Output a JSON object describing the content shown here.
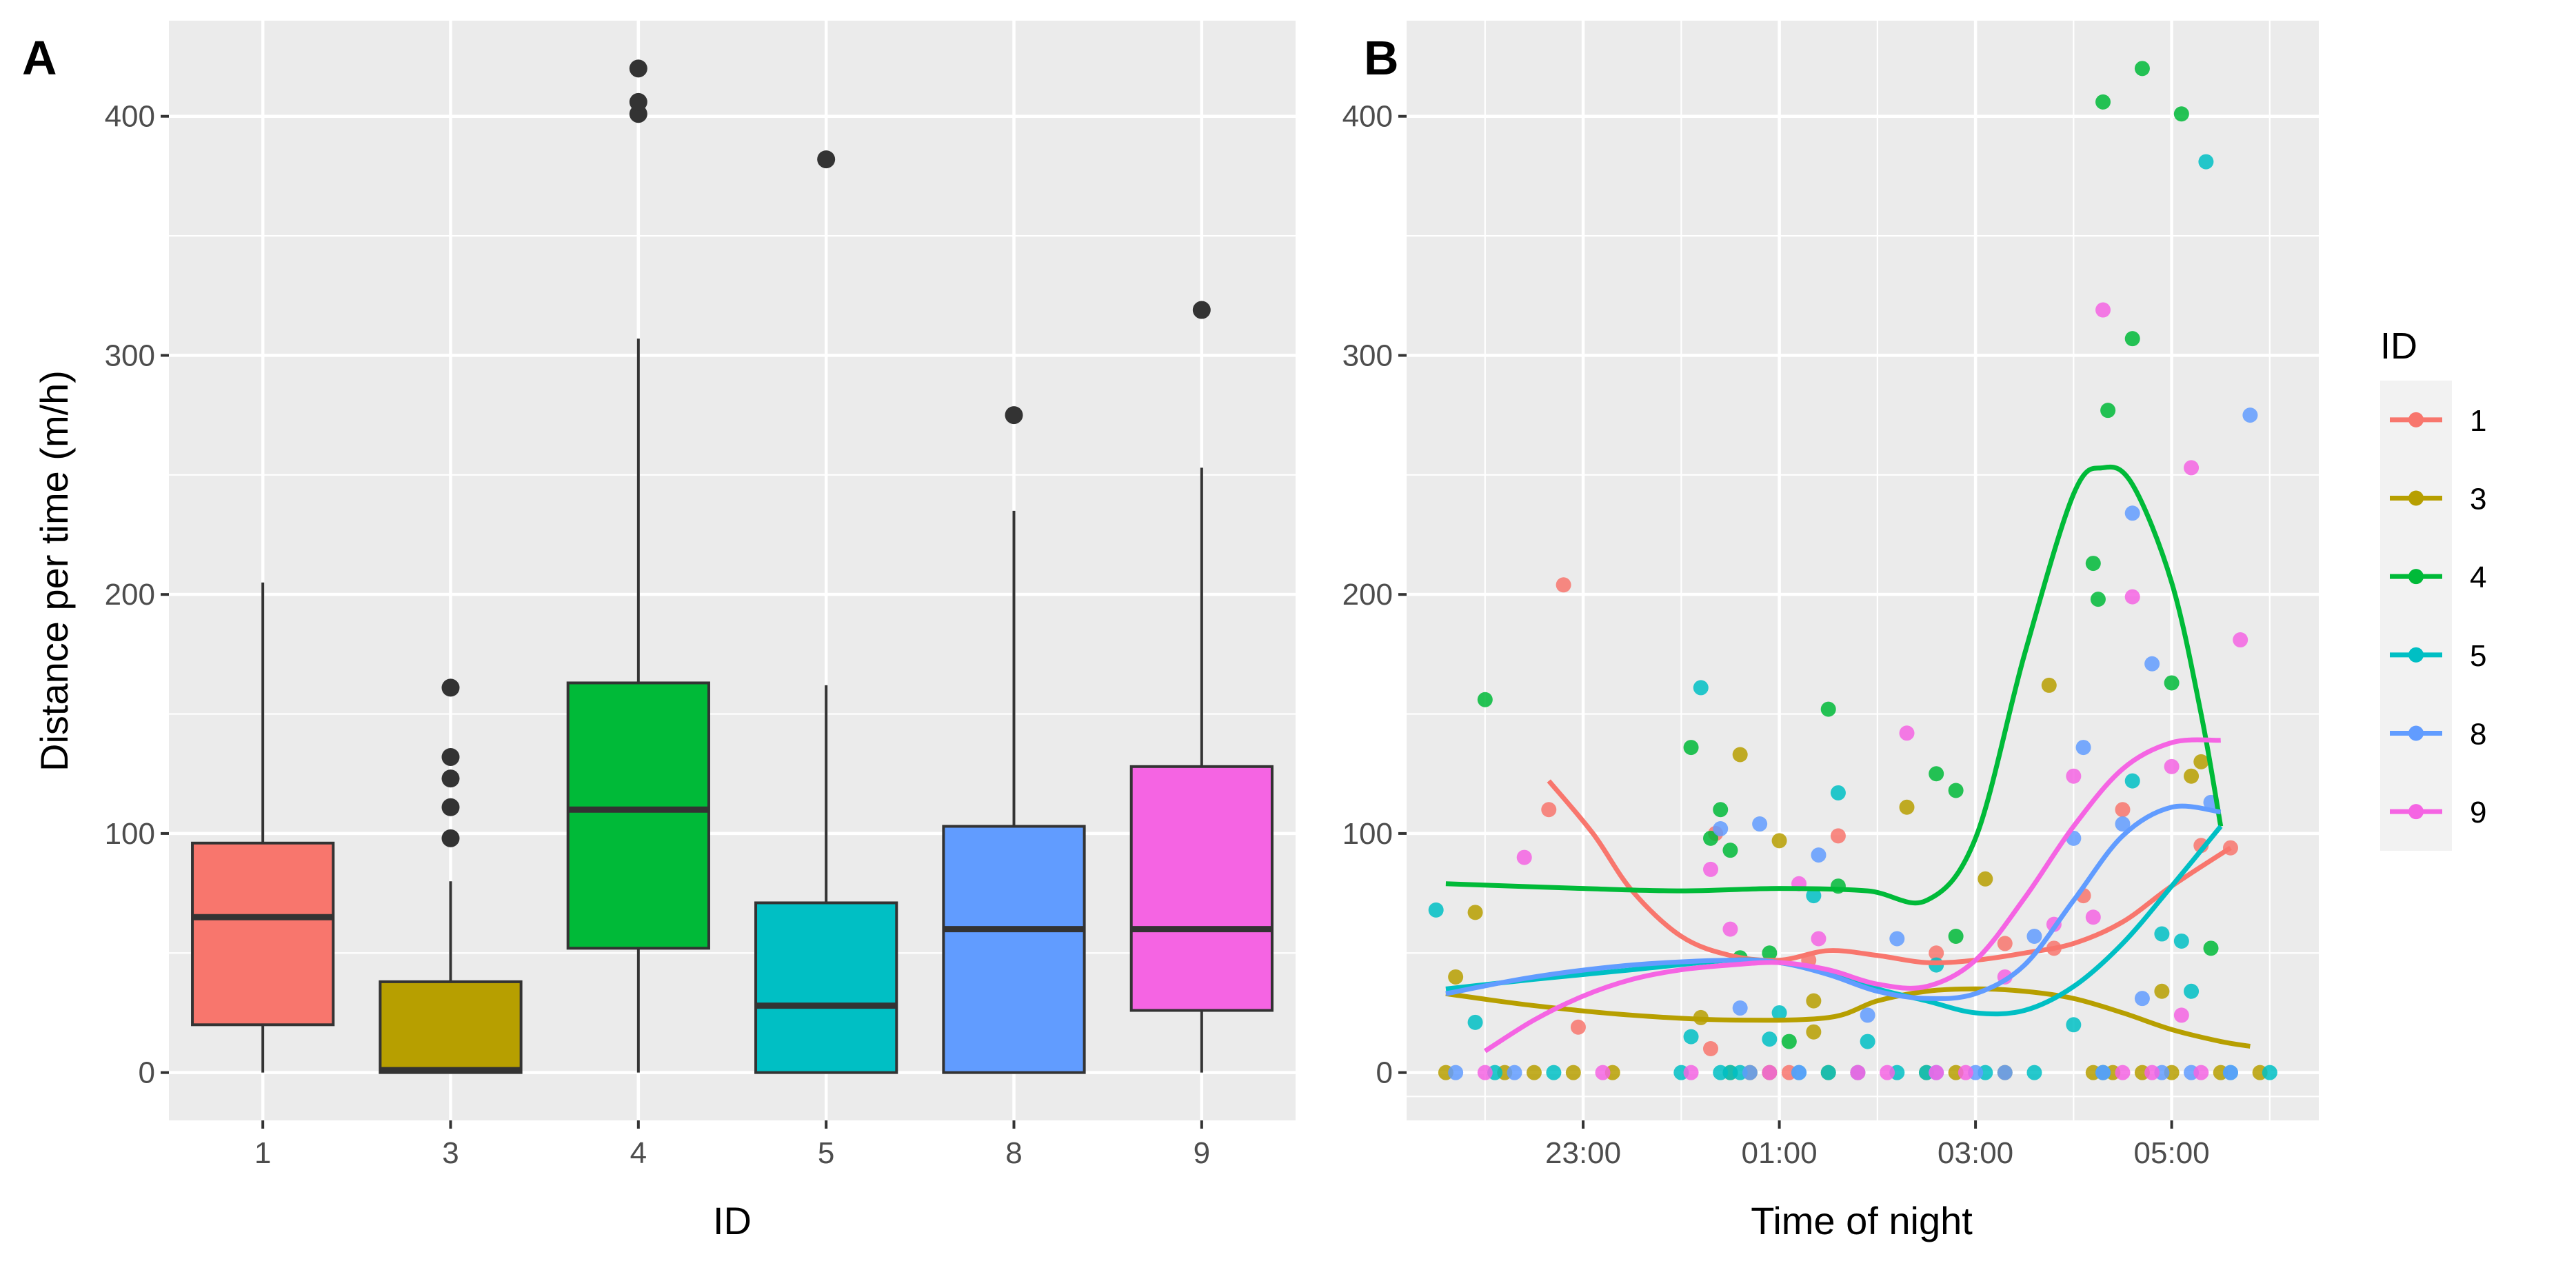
{
  "colors": {
    "1": "#F8766D",
    "3": "#B79F00",
    "4": "#00BA38",
    "5": "#00BFC4",
    "8": "#619CFF",
    "9": "#F564E3"
  },
  "chart_data": [
    {
      "panel": "A",
      "type": "boxplot",
      "xlabel": "ID",
      "ylabel": "Distance per time (m/h)",
      "categories": [
        "1",
        "3",
        "4",
        "5",
        "8",
        "9"
      ],
      "ylim": [
        -20,
        440
      ],
      "yticks": [
        0,
        100,
        200,
        300,
        400
      ],
      "yticklabels": [
        "0",
        "100",
        "200",
        "300",
        "400"
      ],
      "boxes": [
        {
          "id": "1",
          "min": 0,
          "q1": 20,
          "median": 65,
          "q3": 96,
          "max": 205,
          "outliers": []
        },
        {
          "id": "3",
          "min": 0,
          "q1": 0,
          "median": 1,
          "q3": 38,
          "max": 80,
          "outliers": [
            98,
            111,
            123,
            132,
            161
          ]
        },
        {
          "id": "4",
          "min": 0,
          "q1": 52,
          "median": 110,
          "q3": 163,
          "max": 307,
          "outliers": [
            401,
            406,
            420
          ]
        },
        {
          "id": "5",
          "min": 0,
          "q1": 0,
          "median": 28,
          "q3": 71,
          "max": 162,
          "outliers": [
            382
          ]
        },
        {
          "id": "8",
          "min": 0,
          "q1": 0,
          "median": 60,
          "q3": 103,
          "max": 235,
          "outliers": [
            275
          ]
        },
        {
          "id": "9",
          "min": 0,
          "q1": 26,
          "median": 60,
          "q3": 128,
          "max": 253,
          "outliers": [
            319
          ]
        }
      ]
    },
    {
      "panel": "B",
      "type": "scatter",
      "xlabel": "Time of night",
      "ylabel": "",
      "x_unit": "hours after midnight",
      "xlim": [
        -2.8,
        6.5
      ],
      "ylim": [
        -20,
        440
      ],
      "xticks": [
        -1,
        1,
        3,
        5
      ],
      "xticklabels": [
        "23:00",
        "01:00",
        "03:00",
        "05:00"
      ],
      "yticks": [
        0,
        100,
        200,
        300,
        400
      ],
      "yticklabels": [
        "0",
        "100",
        "200",
        "300",
        "400"
      ],
      "legend": {
        "title": "ID",
        "position": "right",
        "entries": [
          "1",
          "3",
          "4",
          "5",
          "8",
          "9"
        ]
      },
      "series": [
        {
          "name": "1",
          "points": [
            [
              -1.35,
              110
            ],
            [
              -1.2,
              204
            ],
            [
              -1.05,
              19
            ],
            [
              0.3,
              10
            ],
            [
              0.35,
              100
            ],
            [
              1.1,
              0
            ],
            [
              1.3,
              47
            ],
            [
              1.6,
              99
            ],
            [
              2.6,
              50
            ],
            [
              3.3,
              54
            ],
            [
              3.8,
              52
            ],
            [
              4.1,
              74
            ],
            [
              4.5,
              110
            ],
            [
              5.3,
              95
            ],
            [
              5.6,
              94
            ]
          ],
          "trend": [
            [
              -1.35,
              122
            ],
            [
              -0.9,
              100
            ],
            [
              -0.5,
              76
            ],
            [
              0,
              57
            ],
            [
              0.5,
              49
            ],
            [
              1,
              47
            ],
            [
              1.5,
              51
            ],
            [
              2,
              49
            ],
            [
              2.5,
              46
            ],
            [
              3,
              47
            ],
            [
              3.5,
              50
            ],
            [
              4,
              54
            ],
            [
              4.5,
              63
            ],
            [
              5,
              78
            ],
            [
              5.6,
              94
            ]
          ]
        },
        {
          "name": "3",
          "points": [
            [
              -2.4,
              0
            ],
            [
              -2.3,
              40
            ],
            [
              -2.1,
              67
            ],
            [
              -1.8,
              0
            ],
            [
              -1.5,
              0
            ],
            [
              -1.1,
              0
            ],
            [
              -0.7,
              0
            ],
            [
              0.2,
              23
            ],
            [
              0.5,
              0
            ],
            [
              0.6,
              133
            ],
            [
              0.7,
              0
            ],
            [
              0.9,
              0
            ],
            [
              1.0,
              97
            ],
            [
              1.35,
              30
            ],
            [
              1.35,
              17
            ],
            [
              1.5,
              0
            ],
            [
              1.8,
              0
            ],
            [
              2.3,
              111
            ],
            [
              2.5,
              0
            ],
            [
              2.8,
              0
            ],
            [
              3.1,
              81
            ],
            [
              3.3,
              0
            ],
            [
              3.75,
              162
            ],
            [
              4.2,
              0
            ],
            [
              4.3,
              0
            ],
            [
              4.4,
              0
            ],
            [
              4.7,
              0
            ],
            [
              4.9,
              34
            ],
            [
              5.0,
              0
            ],
            [
              5.2,
              124
            ],
            [
              5.3,
              130
            ],
            [
              5.5,
              0
            ],
            [
              5.9,
              0
            ]
          ],
          "trend": [
            [
              -2.4,
              33
            ],
            [
              -1.5,
              28
            ],
            [
              -0.5,
              24
            ],
            [
              0.5,
              22
            ],
            [
              1.5,
              23
            ],
            [
              2,
              30
            ],
            [
              2.5,
              34
            ],
            [
              3,
              35
            ],
            [
              3.5,
              34
            ],
            [
              4,
              31
            ],
            [
              4.5,
              25
            ],
            [
              5,
              18
            ],
            [
              5.5,
              13
            ],
            [
              5.8,
              11
            ]
          ]
        },
        {
          "name": "4",
          "points": [
            [
              -2.0,
              156
            ],
            [
              0.1,
              136
            ],
            [
              0.3,
              98
            ],
            [
              0.4,
              110
            ],
            [
              0.5,
              93
            ],
            [
              0.6,
              48
            ],
            [
              0.9,
              50
            ],
            [
              1.1,
              13
            ],
            [
              1.5,
              152
            ],
            [
              1.6,
              78
            ],
            [
              2.6,
              125
            ],
            [
              2.8,
              57
            ],
            [
              2.8,
              118
            ],
            [
              4.2,
              213
            ],
            [
              4.25,
              198
            ],
            [
              4.3,
              406
            ],
            [
              4.35,
              277
            ],
            [
              4.6,
              307
            ],
            [
              4.7,
              420
            ],
            [
              5.0,
              163
            ],
            [
              5.1,
              401
            ],
            [
              5.4,
              52
            ]
          ],
          "trend": [
            [
              -2.4,
              79
            ],
            [
              -1,
              77
            ],
            [
              0,
              76
            ],
            [
              1,
              77
            ],
            [
              1.9,
              76
            ],
            [
              2.5,
              72
            ],
            [
              3,
              98
            ],
            [
              3.5,
              175
            ],
            [
              4.0,
              242
            ],
            [
              4.3,
              253
            ],
            [
              4.6,
              246
            ],
            [
              5.0,
              205
            ],
            [
              5.3,
              150
            ],
            [
              5.5,
              103
            ]
          ]
        },
        {
          "name": "5",
          "points": [
            [
              -2.5,
              68
            ],
            [
              -2.1,
              21
            ],
            [
              -1.9,
              0
            ],
            [
              -1.3,
              0
            ],
            [
              0.0,
              0
            ],
            [
              0.1,
              15
            ],
            [
              0.2,
              161
            ],
            [
              0.4,
              0
            ],
            [
              0.5,
              0
            ],
            [
              0.6,
              0
            ],
            [
              0.9,
              14
            ],
            [
              1.0,
              25
            ],
            [
              1.2,
              0
            ],
            [
              1.35,
              74
            ],
            [
              1.5,
              0
            ],
            [
              1.6,
              117
            ],
            [
              1.9,
              13
            ],
            [
              2.2,
              0
            ],
            [
              2.5,
              0
            ],
            [
              2.6,
              45
            ],
            [
              3.1,
              0
            ],
            [
              3.6,
              0
            ],
            [
              4.0,
              20
            ],
            [
              4.3,
              0
            ],
            [
              4.6,
              122
            ],
            [
              4.9,
              58
            ],
            [
              5.1,
              55
            ],
            [
              5.2,
              34
            ],
            [
              5.35,
              381
            ],
            [
              5.6,
              0
            ],
            [
              6.0,
              0
            ]
          ],
          "trend": [
            [
              -2.4,
              35
            ],
            [
              -1.5,
              39
            ],
            [
              -0.5,
              43
            ],
            [
              0.5,
              47
            ],
            [
              1,
              46
            ],
            [
              1.5,
              42
            ],
            [
              2,
              35
            ],
            [
              2.5,
              30
            ],
            [
              3,
              25
            ],
            [
              3.5,
              26
            ],
            [
              4,
              36
            ],
            [
              4.5,
              54
            ],
            [
              5,
              78
            ],
            [
              5.5,
              103
            ]
          ]
        },
        {
          "name": "8",
          "points": [
            [
              -2.3,
              0
            ],
            [
              -1.7,
              0
            ],
            [
              0.4,
              102
            ],
            [
              0.6,
              27
            ],
            [
              0.7,
              0
            ],
            [
              0.8,
              104
            ],
            [
              1.2,
              0
            ],
            [
              1.4,
              91
            ],
            [
              1.8,
              0
            ],
            [
              1.9,
              24
            ],
            [
              2.2,
              56
            ],
            [
              2.6,
              0
            ],
            [
              3.0,
              0
            ],
            [
              3.3,
              0
            ],
            [
              3.6,
              57
            ],
            [
              4.0,
              98
            ],
            [
              4.1,
              136
            ],
            [
              4.3,
              0
            ],
            [
              4.5,
              104
            ],
            [
              4.6,
              234
            ],
            [
              4.7,
              31
            ],
            [
              4.8,
              171
            ],
            [
              4.9,
              0
            ],
            [
              5.2,
              0
            ],
            [
              5.4,
              113
            ],
            [
              5.6,
              0
            ],
            [
              5.8,
              275
            ]
          ],
          "trend": [
            [
              -2.4,
              33
            ],
            [
              -1.5,
              40
            ],
            [
              -0.5,
              45
            ],
            [
              0.5,
              47
            ],
            [
              1,
              46
            ],
            [
              1.5,
              41
            ],
            [
              2,
              34
            ],
            [
              2.5,
              31
            ],
            [
              3,
              33
            ],
            [
              3.5,
              45
            ],
            [
              4,
              72
            ],
            [
              4.5,
              99
            ],
            [
              5,
              111
            ],
            [
              5.5,
              109
            ]
          ]
        },
        {
          "name": "9",
          "points": [
            [
              -2.0,
              0
            ],
            [
              -1.6,
              90
            ],
            [
              -0.8,
              0
            ],
            [
              0.1,
              0
            ],
            [
              0.3,
              85
            ],
            [
              0.5,
              60
            ],
            [
              0.9,
              0
            ],
            [
              1.2,
              79
            ],
            [
              1.4,
              56
            ],
            [
              1.8,
              0
            ],
            [
              2.1,
              0
            ],
            [
              2.3,
              142
            ],
            [
              2.6,
              0
            ],
            [
              2.9,
              0
            ],
            [
              3.3,
              40
            ],
            [
              3.8,
              62
            ],
            [
              4.0,
              124
            ],
            [
              4.2,
              65
            ],
            [
              4.3,
              319
            ],
            [
              4.5,
              0
            ],
            [
              4.6,
              199
            ],
            [
              4.8,
              0
            ],
            [
              5.0,
              128
            ],
            [
              5.1,
              24
            ],
            [
              5.2,
              253
            ],
            [
              5.3,
              0
            ],
            [
              5.7,
              181
            ]
          ],
          "trend": [
            [
              -2.0,
              9
            ],
            [
              -1.5,
              22
            ],
            [
              -1,
              32
            ],
            [
              -0.5,
              39
            ],
            [
              0,
              43
            ],
            [
              0.5,
              45
            ],
            [
              1,
              46
            ],
            [
              1.5,
              43
            ],
            [
              2,
              37
            ],
            [
              2.5,
              36
            ],
            [
              3,
              47
            ],
            [
              3.5,
              73
            ],
            [
              4,
              103
            ],
            [
              4.5,
              127
            ],
            [
              5,
              138
            ],
            [
              5.5,
              139
            ]
          ]
        }
      ]
    }
  ]
}
